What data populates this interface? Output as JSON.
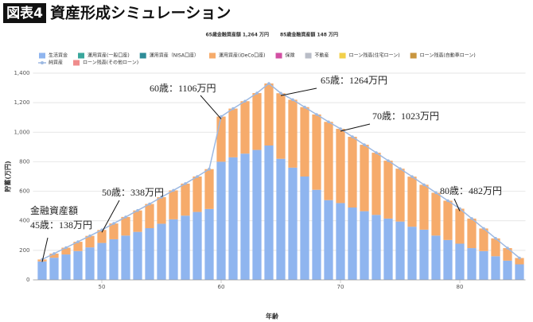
{
  "chart_data": {
    "type": "bar",
    "badge": "図表4",
    "title": "資産形成シミュレーション",
    "subtitles": [
      "65歳金融資産額 1,264 万円",
      "85歳金融資産額 148 万円"
    ],
    "x": [
      45,
      46,
      47,
      48,
      49,
      50,
      51,
      52,
      53,
      54,
      55,
      56,
      57,
      58,
      59,
      60,
      61,
      62,
      63,
      64,
      65,
      66,
      67,
      68,
      69,
      70,
      71,
      72,
      73,
      74,
      75,
      76,
      77,
      78,
      79,
      80,
      81,
      82,
      83,
      84,
      85
    ],
    "series": [
      {
        "name": "生活資金",
        "color": "#8fb5ef",
        "type": "bar",
        "values": [
          125,
          150,
          172,
          195,
          220,
          250,
          275,
          300,
          325,
          350,
          380,
          410,
          435,
          460,
          480,
          800,
          830,
          855,
          880,
          910,
          820,
          760,
          700,
          610,
          540,
          520,
          490,
          465,
          440,
          415,
          395,
          360,
          340,
          300,
          270,
          245,
          215,
          195,
          160,
          130,
          105
        ]
      },
      {
        "name": "運用資産(iDeCo口座)",
        "color": "#f6ab6b",
        "type": "bar",
        "values": [
          13,
          28,
          46,
          63,
          78,
          88,
          107,
          126,
          145,
          164,
          180,
          196,
          217,
          240,
          270,
          306,
          330,
          355,
          385,
          420,
          444,
          460,
          470,
          510,
          530,
          503,
          479,
          450,
          421,
          392,
          358,
          339,
          304,
          290,
          266,
          237,
          200,
          153,
          121,
          85,
          43
        ]
      },
      {
        "name": "純資産",
        "color": "#9db9e2",
        "type": "line",
        "values": [
          138,
          178,
          218,
          258,
          298,
          338,
          382,
          426,
          470,
          514,
          560,
          606,
          652,
          700,
          750,
          1106,
          1160,
          1210,
          1265,
          1330,
          1264,
          1220,
          1170,
          1120,
          1070,
          1023,
          969,
          915,
          861,
          807,
          753,
          699,
          644,
          590,
          536,
          482,
          415,
          348,
          281,
          215,
          148
        ]
      }
    ],
    "legend_entries": [
      {
        "name": "生活資金",
        "color": "#8fb5ef"
      },
      {
        "name": "運用資産(一般口座)",
        "color": "#3aa79c"
      },
      {
        "name": "運用資産（NISA口座）",
        "color": "#2e8c98"
      },
      {
        "name": "運用資産(iDeCo口座)",
        "color": "#f6ab6b"
      },
      {
        "name": "保険",
        "color": "#d24fa3"
      },
      {
        "name": "不動産",
        "color": "#b9bdc7"
      },
      {
        "name": "ローン残高(住宅ローン)",
        "color": "#f2d04a"
      },
      {
        "name": "ローン残高(自動車ローン)",
        "color": "#c9963f"
      },
      {
        "name": "純資産",
        "color": "#9db9e2"
      },
      {
        "name": "ローン残高(その他ローン)",
        "color": "#ef8c8c"
      }
    ],
    "annotations": [
      {
        "text": [
          "金融資産額",
          "45歳：138万円"
        ],
        "x": 45
      },
      {
        "text": [
          "50歳：338万円"
        ],
        "x": 50
      },
      {
        "text": [
          "60歳：1106万円"
        ],
        "x": 60
      },
      {
        "text": [
          "65歳：1264万円"
        ],
        "x": 65
      },
      {
        "text": [
          "70歳：1023万円"
        ],
        "x": 70
      },
      {
        "text": [
          "80歳：482万円"
        ],
        "x": 80
      }
    ],
    "xlabel": "年齢",
    "ylabel": "貯蓄(万円)",
    "xlim": [
      44.5,
      85.5
    ],
    "xticks": [
      50,
      60,
      70,
      80
    ],
    "ylim": [
      0,
      1400
    ],
    "yticks": [
      0,
      200,
      400,
      600,
      800,
      {
        "value": 1000,
        "label": "1,000"
      },
      {
        "value": 1200,
        "label": "1,200"
      },
      {
        "value": 1400,
        "label": "1,400"
      }
    ],
    "grid": true
  }
}
